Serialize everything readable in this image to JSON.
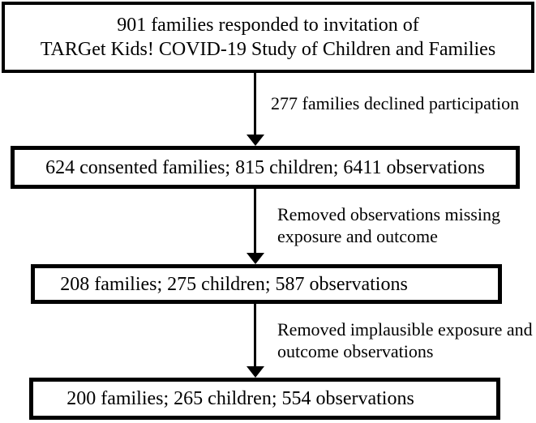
{
  "figure": {
    "type": "flowchart",
    "colors": {
      "background": "#ffffff",
      "border": "#000000",
      "text": "#000000"
    },
    "boxes": {
      "responded": {
        "line1": "901 families responded to invitation of",
        "line2": "TARGet Kids! COVID-19 Study of Children and Families"
      },
      "consented": {
        "text": "624 consented families; 815 children; 6411 observations"
      },
      "after_missing_removed": {
        "text": "208 families; 275 children; 587 observations"
      },
      "final": {
        "text": "200 families; 265 children; 554 observations"
      }
    },
    "arrows": {
      "declined": {
        "label": "277 families declined participation"
      },
      "removed_missing": {
        "label_line1": "Removed observations missing",
        "label_line2": "exposure and outcome"
      },
      "removed_implausible": {
        "label_line1": "Removed implausible exposure and",
        "label_line2": "outcome observations"
      }
    }
  }
}
